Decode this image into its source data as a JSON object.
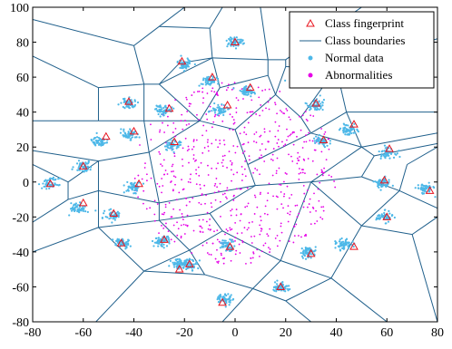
{
  "chart_data": {
    "type": "scatter",
    "title": "",
    "xlabel": "",
    "ylabel": "",
    "xlim": [
      -80,
      80
    ],
    "ylim": [
      -80,
      100
    ],
    "xticks": [
      -80,
      -60,
      -40,
      -20,
      0,
      20,
      40,
      60,
      80
    ],
    "yticks": [
      -80,
      -60,
      -40,
      -20,
      0,
      20,
      40,
      60,
      80,
      100
    ],
    "xtick_labels": [
      "-80",
      "-60",
      "-40",
      "-20",
      "0",
      "20",
      "40",
      "60",
      "80"
    ],
    "ytick_labels": [
      "-80",
      "-60",
      "-40",
      "-20",
      "0",
      "20",
      "40",
      "60",
      "80",
      "100"
    ],
    "grid": false,
    "legend": {
      "position": "top-right",
      "entries": [
        {
          "label": "Class fingerprint",
          "marker": "triangle-open",
          "color": "#e8141e"
        },
        {
          "label": "Class boundaries",
          "marker": "line",
          "color": "#1f5f8b"
        },
        {
          "label": "Normal data",
          "marker": "dot",
          "color": "#4db8e8"
        },
        {
          "label": "Abnormalities",
          "marker": "dot",
          "color": "#e600e6"
        }
      ]
    },
    "colors": {
      "fingerprint": "#e8141e",
      "boundary": "#1f5f8b",
      "normal": "#4db8e8",
      "abnormal": "#e600e6"
    },
    "class_clusters": [
      {
        "normal_center": [
          0,
          80
        ],
        "fingerprint": [
          0,
          80
        ]
      },
      {
        "normal_center": [
          -20,
          67
        ],
        "fingerprint": [
          -21,
          69
        ]
      },
      {
        "normal_center": [
          -10,
          58
        ],
        "fingerprint": [
          -9,
          60
        ]
      },
      {
        "normal_center": [
          5,
          52
        ],
        "fingerprint": [
          6,
          54
        ]
      },
      {
        "normal_center": [
          25,
          58
        ],
        "fingerprint": [
          26,
          60
        ]
      },
      {
        "normal_center": [
          -42,
          45
        ],
        "fingerprint": [
          -42,
          46
        ]
      },
      {
        "normal_center": [
          -28,
          41
        ],
        "fingerprint": [
          -26,
          42
        ]
      },
      {
        "normal_center": [
          -6,
          41
        ],
        "fingerprint": [
          -3,
          44
        ]
      },
      {
        "normal_center": [
          32,
          44
        ],
        "fingerprint": [
          32,
          45
        ]
      },
      {
        "normal_center": [
          -42,
          27
        ],
        "fingerprint": [
          -40,
          29
        ]
      },
      {
        "normal_center": [
          -25,
          21
        ],
        "fingerprint": [
          -24,
          23
        ]
      },
      {
        "normal_center": [
          45,
          30
        ],
        "fingerprint": [
          47,
          33
        ]
      },
      {
        "normal_center": [
          -54,
          23
        ],
        "fingerprint": [
          -51,
          26
        ]
      },
      {
        "normal_center": [
          34,
          23
        ],
        "fingerprint": [
          35,
          24
        ]
      },
      {
        "normal_center": [
          -60,
          9
        ],
        "fingerprint": [
          -60,
          9
        ]
      },
      {
        "normal_center": [
          60,
          17
        ],
        "fingerprint": [
          61,
          19
        ]
      },
      {
        "normal_center": [
          -73,
          -1
        ],
        "fingerprint": [
          -73,
          -1
        ]
      },
      {
        "normal_center": [
          -40,
          -3
        ],
        "fingerprint": [
          -38,
          -1
        ]
      },
      {
        "normal_center": [
          58,
          -1
        ],
        "fingerprint": [
          59,
          1
        ]
      },
      {
        "normal_center": [
          75,
          -4
        ],
        "fingerprint": [
          77,
          -5
        ]
      },
      {
        "normal_center": [
          -62,
          -15
        ],
        "fingerprint": [
          -60,
          -12
        ]
      },
      {
        "normal_center": [
          -48,
          -19
        ],
        "fingerprint": [
          -48,
          -18
        ]
      },
      {
        "normal_center": [
          59,
          -20
        ],
        "fingerprint": [
          60,
          -20
        ]
      },
      {
        "normal_center": [
          -45,
          -35
        ],
        "fingerprint": [
          -45,
          -35
        ]
      },
      {
        "normal_center": [
          -29,
          -34
        ],
        "fingerprint": [
          -28,
          -33
        ]
      },
      {
        "normal_center": [
          43,
          -36
        ],
        "fingerprint": [
          47,
          -37
        ]
      },
      {
        "normal_center": [
          -3,
          -36
        ],
        "fingerprint": [
          -2,
          -37
        ]
      },
      {
        "normal_center": [
          -22,
          -47
        ],
        "fingerprint": [
          -22,
          -50
        ]
      },
      {
        "normal_center": [
          29,
          -40
        ],
        "fingerprint": [
          30,
          -41
        ]
      },
      {
        "normal_center": [
          -18,
          -47
        ],
        "fingerprint": [
          -18,
          -47
        ]
      },
      {
        "normal_center": [
          18,
          -60
        ],
        "fingerprint": [
          18,
          -60
        ]
      },
      {
        "normal_center": [
          -4,
          -67
        ],
        "fingerprint": [
          -5,
          -69
        ]
      }
    ],
    "abnormal_region": {
      "center": [
        0,
        5
      ],
      "radius_x": 40,
      "radius_y": 55
    },
    "boundary_segments": [
      [
        [
          -80,
          93
        ],
        [
          -40,
          78
        ]
      ],
      [
        [
          -40,
          78
        ],
        [
          -36,
          56
        ]
      ],
      [
        [
          -40,
          78
        ],
        [
          -30,
          89
        ]
      ],
      [
        [
          -30,
          89
        ],
        [
          -20,
          100
        ]
      ],
      [
        [
          -30,
          89
        ],
        [
          -10,
          88
        ]
      ],
      [
        [
          -10,
          88
        ],
        [
          -5,
          100
        ]
      ],
      [
        [
          -10,
          88
        ],
        [
          -9,
          71
        ]
      ],
      [
        [
          -9,
          71
        ],
        [
          -30,
          56
        ]
      ],
      [
        [
          -36,
          56
        ],
        [
          -30,
          56
        ]
      ],
      [
        [
          -9,
          71
        ],
        [
          13,
          70
        ]
      ],
      [
        [
          13,
          70
        ],
        [
          10,
          100
        ]
      ],
      [
        [
          13,
          70
        ],
        [
          20,
          70
        ]
      ],
      [
        [
          20,
          70
        ],
        [
          50,
          100
        ]
      ],
      [
        [
          20,
          70
        ],
        [
          20,
          66
        ]
      ],
      [
        [
          20,
          66
        ],
        [
          40,
          65
        ]
      ],
      [
        [
          40,
          65
        ],
        [
          80,
          82
        ]
      ],
      [
        [
          -80,
          72
        ],
        [
          -54,
          54
        ]
      ],
      [
        [
          -54,
          54
        ],
        [
          -36,
          56
        ]
      ],
      [
        [
          -54,
          54
        ],
        [
          -54,
          35
        ]
      ],
      [
        [
          -80,
          35
        ],
        [
          -54,
          35
        ]
      ],
      [
        [
          -54,
          35
        ],
        [
          -36,
          35
        ]
      ],
      [
        [
          -36,
          56
        ],
        [
          -36,
          35
        ]
      ],
      [
        [
          -30,
          56
        ],
        [
          -14,
          35
        ]
      ],
      [
        [
          -30,
          56
        ],
        [
          -22,
          68
        ]
      ],
      [
        [
          -22,
          68
        ],
        [
          -9,
          71
        ]
      ],
      [
        [
          -9,
          71
        ],
        [
          -6,
          54
        ]
      ],
      [
        [
          -6,
          54
        ],
        [
          13,
          61
        ]
      ],
      [
        [
          13,
          61
        ],
        [
          13,
          70
        ]
      ],
      [
        [
          13,
          61
        ],
        [
          16,
          50
        ]
      ],
      [
        [
          16,
          50
        ],
        [
          20,
          66
        ]
      ],
      [
        [
          -6,
          54
        ],
        [
          -14,
          35
        ]
      ],
      [
        [
          -14,
          35
        ],
        [
          -36,
          35
        ]
      ],
      [
        [
          -36,
          35
        ],
        [
          -34,
          17
        ]
      ],
      [
        [
          -80,
          18
        ],
        [
          -54,
          12
        ]
      ],
      [
        [
          -54,
          12
        ],
        [
          -34,
          17
        ]
      ],
      [
        [
          -34,
          17
        ],
        [
          -14,
          35
        ]
      ],
      [
        [
          -14,
          35
        ],
        [
          0,
          30
        ]
      ],
      [
        [
          0,
          30
        ],
        [
          16,
          50
        ]
      ],
      [
        [
          16,
          50
        ],
        [
          26,
          37
        ]
      ],
      [
        [
          26,
          37
        ],
        [
          40,
          65
        ]
      ],
      [
        [
          40,
          65
        ],
        [
          44,
          40
        ]
      ],
      [
        [
          44,
          40
        ],
        [
          80,
          40
        ]
      ],
      [
        [
          26,
          37
        ],
        [
          30,
          28
        ]
      ],
      [
        [
          30,
          28
        ],
        [
          44,
          40
        ]
      ],
      [
        [
          44,
          40
        ],
        [
          50,
          20
        ]
      ],
      [
        [
          30,
          28
        ],
        [
          50,
          20
        ]
      ],
      [
        [
          50,
          20
        ],
        [
          80,
          28
        ]
      ],
      [
        [
          -80,
          10
        ],
        [
          -66,
          0
        ]
      ],
      [
        [
          -66,
          0
        ],
        [
          -54,
          12
        ]
      ],
      [
        [
          -66,
          0
        ],
        [
          -66,
          -10
        ]
      ],
      [
        [
          -66,
          -10
        ],
        [
          -80,
          -23
        ]
      ],
      [
        [
          -66,
          -10
        ],
        [
          -54,
          -5
        ]
      ],
      [
        [
          -54,
          -5
        ],
        [
          -54,
          12
        ]
      ],
      [
        [
          -54,
          -5
        ],
        [
          -30,
          -12
        ]
      ],
      [
        [
          -30,
          -12
        ],
        [
          -34,
          17
        ]
      ],
      [
        [
          0,
          30
        ],
        [
          5,
          10
        ]
      ],
      [
        [
          5,
          10
        ],
        [
          30,
          28
        ]
      ],
      [
        [
          5,
          10
        ],
        [
          8,
          -2
        ]
      ],
      [
        [
          8,
          -2
        ],
        [
          -30,
          -12
        ]
      ],
      [
        [
          8,
          -2
        ],
        [
          30,
          0
        ]
      ],
      [
        [
          30,
          0
        ],
        [
          50,
          20
        ]
      ],
      [
        [
          30,
          0
        ],
        [
          50,
          3
        ]
      ],
      [
        [
          50,
          3
        ],
        [
          55,
          15
        ]
      ],
      [
        [
          55,
          15
        ],
        [
          50,
          20
        ]
      ],
      [
        [
          55,
          15
        ],
        [
          80,
          22
        ]
      ],
      [
        [
          50,
          3
        ],
        [
          65,
          -5
        ]
      ],
      [
        [
          65,
          -5
        ],
        [
          80,
          -15
        ]
      ],
      [
        [
          65,
          -5
        ],
        [
          68,
          10
        ]
      ],
      [
        [
          68,
          10
        ],
        [
          80,
          20
        ]
      ],
      [
        [
          -80,
          -40
        ],
        [
          -54,
          -26
        ]
      ],
      [
        [
          -54,
          -26
        ],
        [
          -54,
          -5
        ]
      ],
      [
        [
          -54,
          -26
        ],
        [
          -30,
          -22
        ]
      ],
      [
        [
          -30,
          -22
        ],
        [
          -30,
          -12
        ]
      ],
      [
        [
          -30,
          -22
        ],
        [
          -10,
          -18
        ]
      ],
      [
        [
          -10,
          -18
        ],
        [
          8,
          -2
        ]
      ],
      [
        [
          -10,
          -18
        ],
        [
          -5,
          -28
        ]
      ],
      [
        [
          -5,
          -28
        ],
        [
          18,
          -45
        ]
      ],
      [
        [
          18,
          -45
        ],
        [
          30,
          0
        ]
      ],
      [
        [
          -5,
          -28
        ],
        [
          -18,
          -39
        ]
      ],
      [
        [
          -18,
          -39
        ],
        [
          -30,
          -22
        ]
      ],
      [
        [
          -18,
          -39
        ],
        [
          -36,
          -51
        ]
      ],
      [
        [
          -36,
          -51
        ],
        [
          -54,
          -26
        ]
      ],
      [
        [
          -36,
          -51
        ],
        [
          -55,
          -80
        ]
      ],
      [
        [
          -18,
          -39
        ],
        [
          -12,
          -53
        ]
      ],
      [
        [
          -12,
          -53
        ],
        [
          -36,
          -51
        ]
      ],
      [
        [
          -12,
          -53
        ],
        [
          7,
          -61
        ]
      ],
      [
        [
          7,
          -61
        ],
        [
          18,
          -45
        ]
      ],
      [
        [
          7,
          -61
        ],
        [
          -5,
          -80
        ]
      ],
      [
        [
          7,
          -61
        ],
        [
          20,
          -68
        ]
      ],
      [
        [
          20,
          -68
        ],
        [
          30,
          -80
        ]
      ],
      [
        [
          20,
          -68
        ],
        [
          38,
          -55
        ]
      ],
      [
        [
          38,
          -55
        ],
        [
          18,
          -45
        ]
      ],
      [
        [
          38,
          -55
        ],
        [
          50,
          -25
        ]
      ],
      [
        [
          50,
          -25
        ],
        [
          30,
          0
        ]
      ],
      [
        [
          50,
          -25
        ],
        [
          65,
          -5
        ]
      ],
      [
        [
          38,
          -55
        ],
        [
          60,
          -80
        ]
      ],
      [
        [
          50,
          -25
        ],
        [
          70,
          -30
        ]
      ],
      [
        [
          70,
          -30
        ],
        [
          80,
          -20
        ]
      ],
      [
        [
          70,
          -30
        ],
        [
          80,
          -80
        ]
      ]
    ]
  }
}
